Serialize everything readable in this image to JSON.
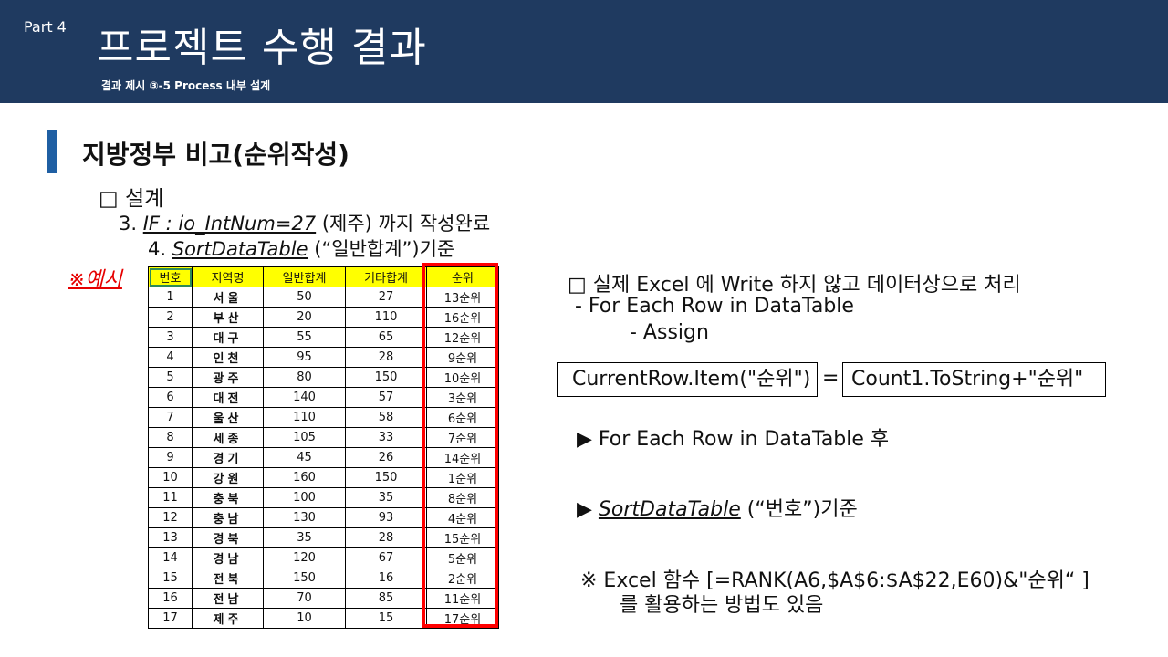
{
  "header": {
    "part": "Part 4",
    "title": "프로젝트 수행 결과",
    "subtitle": "결과 제시 ③-5 Process 내부 설계"
  },
  "section": {
    "title": "지방정부 비고(순위작성)",
    "design": "□ 설계",
    "step3_num": "3.",
    "step3_code": "IF : io_IntNum=27",
    "step3_text": "(제주) 까지 작성완료",
    "step4_num": "4.",
    "step4_code": "SortDataTable",
    "step4_text": "(“일반합계”)기준"
  },
  "example_label": "※예시",
  "table": {
    "headers": [
      "번호",
      "지역명",
      "일반합계",
      "기타합계",
      "순위"
    ],
    "rows": [
      [
        "1",
        "서울",
        "50",
        "27",
        "13순위"
      ],
      [
        "2",
        "부산",
        "20",
        "110",
        "16순위"
      ],
      [
        "3",
        "대구",
        "55",
        "65",
        "12순위"
      ],
      [
        "4",
        "인천",
        "95",
        "28",
        "9순위"
      ],
      [
        "5",
        "광주",
        "80",
        "150",
        "10순위"
      ],
      [
        "6",
        "대전",
        "140",
        "57",
        "3순위"
      ],
      [
        "7",
        "울산",
        "110",
        "58",
        "6순위"
      ],
      [
        "8",
        "세종",
        "105",
        "33",
        "7순위"
      ],
      [
        "9",
        "경기",
        "45",
        "26",
        "14순위"
      ],
      [
        "10",
        "강원",
        "160",
        "150",
        "1순위"
      ],
      [
        "11",
        "충북",
        "100",
        "35",
        "8순위"
      ],
      [
        "12",
        "충남",
        "130",
        "93",
        "4순위"
      ],
      [
        "13",
        "경북",
        "35",
        "28",
        "15순위"
      ],
      [
        "14",
        "경남",
        "120",
        "67",
        "5순위"
      ],
      [
        "15",
        "전북",
        "150",
        "16",
        "2순위"
      ],
      [
        "16",
        "전남",
        "70",
        "85",
        "11순위"
      ],
      [
        "17",
        "제주",
        "10",
        "15",
        "17순위"
      ]
    ]
  },
  "right": {
    "note1": "□ 실제 Excel 에 Write 하지 않고 데이터상으로 처리",
    "note2": "- For Each Row in DataTable",
    "note3": "- Assign",
    "assign_left": "CurrentRow.Item(\"순위\")",
    "assign_eq": "=",
    "assign_right": "Count1.ToString+\"순위\"",
    "arrow1": "▶ For Each Row in DataTable 후",
    "arrow2_mark": "▶",
    "arrow2_code": "SortDataTable",
    "arrow2_text": "(“번호”)기준",
    "excel_note1": "※ Excel 함수 [=RANK(A6,$A$6:$A$22,E60)&\"순위“ ]",
    "excel_note2": "를 활용하는 방법도 있음"
  }
}
